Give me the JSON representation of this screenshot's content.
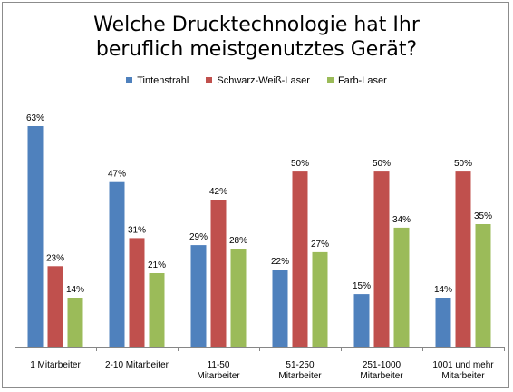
{
  "chart_data": {
    "type": "bar",
    "title": "Welche Drucktechnologie hat Ihr beruflich meistgenutztes Gerät?",
    "xlabel": "",
    "ylabel": "",
    "ylim": [
      0,
      70
    ],
    "grid": false,
    "legend_position": "top",
    "categories": [
      [
        "1 Mitarbeiter"
      ],
      [
        "2-10 Mitarbeiter"
      ],
      [
        "11-50",
        "Mitarbeiter"
      ],
      [
        "51-250",
        "Mitarbeiter"
      ],
      [
        "251-1000",
        "Mitarbeiter"
      ],
      [
        "1001 und mehr",
        "Mitarbeiter"
      ]
    ],
    "series": [
      {
        "name": "Tintenstrahl",
        "color": "#4f81bd",
        "values": [
          63,
          47,
          29,
          22,
          15,
          14
        ],
        "labels": [
          "63%",
          "47%",
          "29%",
          "22%",
          "15%",
          "14%"
        ]
      },
      {
        "name": "Schwarz-Weiß-Laser",
        "color": "#c0504d",
        "values": [
          23,
          31,
          42,
          50,
          50,
          50
        ],
        "labels": [
          "23%",
          "31%",
          "42%",
          "50%",
          "50%",
          "50%"
        ]
      },
      {
        "name": "Farb-Laser",
        "color": "#9bbb59",
        "values": [
          14,
          21,
          28,
          27,
          34,
          35
        ],
        "labels": [
          "14%",
          "21%",
          "28%",
          "27%",
          "34%",
          "35%"
        ]
      }
    ]
  }
}
